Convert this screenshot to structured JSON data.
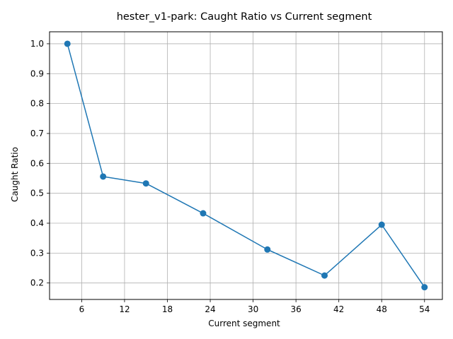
{
  "chart_data": {
    "type": "line",
    "title": "hester_v1-park: Caught Ratio vs Current segment",
    "xlabel": "Current segment",
    "ylabel": "Caught Ratio",
    "x": [
      4,
      9,
      15,
      23,
      32,
      40,
      48,
      54
    ],
    "series": [
      {
        "values": [
          1.0,
          0.556,
          0.533,
          0.433,
          0.312,
          0.225,
          0.395,
          0.186
        ],
        "color": "#1f77b4",
        "marker": "circle"
      }
    ],
    "xlim": [
      1.5,
      56.5
    ],
    "ylim": [
      0.145,
      1.04
    ],
    "xticks": [
      6,
      12,
      18,
      24,
      30,
      36,
      42,
      48,
      54
    ],
    "yticks": [
      0.2,
      0.3,
      0.4,
      0.5,
      0.6,
      0.7,
      0.8,
      0.9,
      1.0
    ],
    "ytick_labels": [
      "0.2",
      "0.3",
      "0.4",
      "0.5",
      "0.6",
      "0.7",
      "0.8",
      "0.9",
      "1.0"
    ],
    "grid": true,
    "legend": "none"
  }
}
